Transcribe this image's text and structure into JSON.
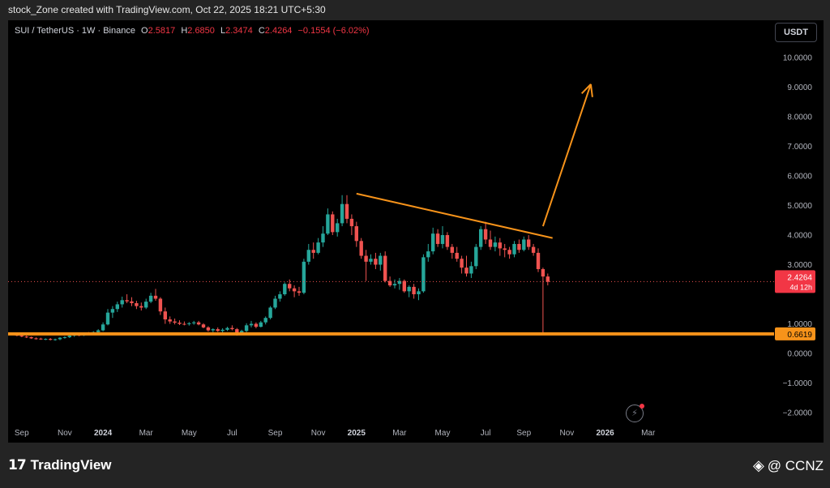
{
  "header": {
    "caption": "stock_Zone created with TradingView.com, Oct 22, 2025 18:21 UTC+5:30"
  },
  "legend": {
    "symbol": "SUI / TetherUS · 1W · Binance",
    "open_label": "O",
    "open": "2.5817",
    "high_label": "H",
    "high": "2.6850",
    "low_label": "L",
    "low": "2.3474",
    "close_label": "C",
    "close": "2.4264",
    "change": "−0.1554 (−6.02%)"
  },
  "currency_button": "USDT",
  "footer": {
    "logo_text": "TradingView",
    "watermark": "@ CCNZ"
  },
  "colors": {
    "up": "#26a69a",
    "down": "#ef5350",
    "drawing": "#f7931a",
    "background": "#000000"
  },
  "chart_data": {
    "type": "candlestick",
    "symbol": "SUI / TetherUS",
    "interval": "1W",
    "exchange": "Binance",
    "ylim": [
      -2.0,
      10.5
    ],
    "y_ticks": [
      "10.0000",
      "9.0000",
      "8.0000",
      "7.0000",
      "6.0000",
      "5.0000",
      "4.0000",
      "3.0000",
      "1.0000",
      "0.0000",
      "−1.0000",
      "−2.0000"
    ],
    "y_tick_values": [
      10,
      9,
      8,
      7,
      6,
      5,
      4,
      3,
      1,
      0,
      -1,
      -2
    ],
    "x_ticks": [
      {
        "label": "Sep",
        "week": 2,
        "bold": false
      },
      {
        "label": "Nov",
        "week": 11,
        "bold": false
      },
      {
        "label": "2024",
        "week": 19,
        "bold": true
      },
      {
        "label": "Mar",
        "week": 28,
        "bold": false
      },
      {
        "label": "May",
        "week": 37,
        "bold": false
      },
      {
        "label": "Jul",
        "week": 46,
        "bold": false
      },
      {
        "label": "Sep",
        "week": 55,
        "bold": false
      },
      {
        "label": "Nov",
        "week": 64,
        "bold": false
      },
      {
        "label": "2025",
        "week": 72,
        "bold": true
      },
      {
        "label": "Mar",
        "week": 81,
        "bold": false
      },
      {
        "label": "May",
        "week": 90,
        "bold": false
      },
      {
        "label": "Jul",
        "week": 99,
        "bold": false
      },
      {
        "label": "Sep",
        "week": 107,
        "bold": false
      },
      {
        "label": "Nov",
        "week": 116,
        "bold": false
      },
      {
        "label": "2026",
        "week": 124,
        "bold": true
      },
      {
        "label": "Mar",
        "week": 133,
        "bold": false
      }
    ],
    "candles": [
      [
        0.65,
        0.68,
        0.62,
        0.64
      ],
      [
        0.64,
        0.66,
        0.58,
        0.6
      ],
      [
        0.6,
        0.63,
        0.55,
        0.57
      ],
      [
        0.57,
        0.6,
        0.52,
        0.55
      ],
      [
        0.55,
        0.57,
        0.49,
        0.51
      ],
      [
        0.51,
        0.54,
        0.47,
        0.5
      ],
      [
        0.5,
        0.53,
        0.46,
        0.48
      ],
      [
        0.48,
        0.51,
        0.45,
        0.49
      ],
      [
        0.49,
        0.52,
        0.44,
        0.46
      ],
      [
        0.46,
        0.5,
        0.43,
        0.48
      ],
      [
        0.48,
        0.55,
        0.45,
        0.53
      ],
      [
        0.53,
        0.58,
        0.5,
        0.55
      ],
      [
        0.55,
        0.62,
        0.52,
        0.6
      ],
      [
        0.6,
        0.66,
        0.56,
        0.63
      ],
      [
        0.63,
        0.68,
        0.58,
        0.61
      ],
      [
        0.61,
        0.7,
        0.59,
        0.67
      ],
      [
        0.67,
        0.72,
        0.62,
        0.65
      ],
      [
        0.65,
        0.75,
        0.62,
        0.72
      ],
      [
        0.72,
        0.82,
        0.68,
        0.78
      ],
      [
        0.78,
        1.05,
        0.75,
        0.98
      ],
      [
        0.98,
        1.5,
        0.95,
        1.38
      ],
      [
        1.38,
        1.6,
        1.2,
        1.5
      ],
      [
        1.5,
        1.75,
        1.4,
        1.66
      ],
      [
        1.66,
        1.92,
        1.55,
        1.8
      ],
      [
        1.8,
        2.0,
        1.7,
        1.76
      ],
      [
        1.76,
        1.9,
        1.6,
        1.7
      ],
      [
        1.7,
        1.78,
        1.5,
        1.6
      ],
      [
        1.6,
        1.72,
        1.45,
        1.55
      ],
      [
        1.55,
        1.85,
        1.5,
        1.75
      ],
      [
        1.75,
        2.05,
        1.7,
        1.95
      ],
      [
        1.95,
        2.18,
        1.78,
        1.85
      ],
      [
        1.85,
        1.9,
        1.3,
        1.42
      ],
      [
        1.42,
        1.55,
        1.0,
        1.15
      ],
      [
        1.15,
        1.25,
        1.0,
        1.08
      ],
      [
        1.08,
        1.18,
        0.98,
        1.04
      ],
      [
        1.04,
        1.12,
        0.96,
        1.0
      ],
      [
        1.0,
        1.08,
        0.95,
        0.99
      ],
      [
        0.99,
        1.06,
        0.94,
        1.02
      ],
      [
        1.02,
        1.1,
        0.97,
        1.05
      ],
      [
        1.05,
        1.1,
        0.95,
        0.98
      ],
      [
        0.98,
        1.02,
        0.85,
        0.88
      ],
      [
        0.88,
        0.92,
        0.74,
        0.78
      ],
      [
        0.78,
        0.85,
        0.72,
        0.82
      ],
      [
        0.82,
        0.88,
        0.73,
        0.76
      ],
      [
        0.76,
        0.85,
        0.7,
        0.8
      ],
      [
        0.8,
        0.9,
        0.76,
        0.86
      ],
      [
        0.86,
        0.95,
        0.78,
        0.82
      ],
      [
        0.82,
        0.86,
        0.6,
        0.66
      ],
      [
        0.66,
        0.8,
        0.62,
        0.76
      ],
      [
        0.76,
        1.02,
        0.72,
        0.95
      ],
      [
        0.95,
        1.1,
        0.88,
        1.0
      ],
      [
        1.0,
        1.05,
        0.85,
        0.9
      ],
      [
        0.9,
        1.1,
        0.88,
        1.05
      ],
      [
        1.05,
        1.25,
        0.98,
        1.2
      ],
      [
        1.2,
        1.6,
        1.15,
        1.55
      ],
      [
        1.55,
        1.95,
        1.5,
        1.85
      ],
      [
        1.85,
        2.1,
        1.75,
        2.0
      ],
      [
        2.0,
        2.4,
        1.95,
        2.35
      ],
      [
        2.35,
        2.5,
        2.1,
        2.2
      ],
      [
        2.2,
        2.3,
        1.9,
        2.1
      ],
      [
        2.1,
        2.25,
        1.95,
        2.05
      ],
      [
        2.05,
        3.2,
        2.0,
        3.1
      ],
      [
        3.1,
        3.7,
        3.0,
        3.5
      ],
      [
        3.5,
        3.75,
        3.2,
        3.4
      ],
      [
        3.4,
        3.9,
        3.35,
        3.75
      ],
      [
        3.75,
        4.3,
        3.6,
        4.05
      ],
      [
        4.05,
        4.9,
        4.0,
        4.7
      ],
      [
        4.7,
        4.8,
        4.0,
        4.1
      ],
      [
        4.1,
        4.55,
        3.95,
        4.4
      ],
      [
        4.4,
        5.35,
        4.3,
        5.05
      ],
      [
        5.05,
        5.35,
        4.4,
        4.55
      ],
      [
        4.55,
        4.7,
        4.0,
        4.3
      ],
      [
        4.3,
        4.45,
        3.6,
        3.8
      ],
      [
        3.8,
        3.9,
        3.2,
        3.3
      ],
      [
        3.3,
        3.5,
        2.45,
        3.1
      ],
      [
        3.1,
        3.35,
        3.0,
        3.2
      ],
      [
        3.2,
        3.4,
        2.85,
        3.0
      ],
      [
        3.0,
        3.4,
        2.8,
        3.3
      ],
      [
        3.3,
        3.45,
        2.4,
        2.45
      ],
      [
        2.45,
        2.6,
        2.25,
        2.3
      ],
      [
        2.3,
        2.5,
        2.2,
        2.35
      ],
      [
        2.35,
        2.55,
        2.15,
        2.45
      ],
      [
        2.45,
        2.5,
        2.05,
        2.1
      ],
      [
        2.1,
        2.3,
        1.9,
        2.25
      ],
      [
        2.25,
        2.35,
        1.85,
        2.0
      ],
      [
        2.0,
        2.2,
        1.8,
        2.1
      ],
      [
        2.1,
        3.35,
        2.05,
        3.25
      ],
      [
        3.25,
        3.7,
        3.1,
        3.45
      ],
      [
        3.45,
        4.25,
        3.35,
        4.05
      ],
      [
        4.05,
        4.2,
        3.6,
        3.7
      ],
      [
        3.7,
        4.3,
        3.55,
        4.0
      ],
      [
        4.0,
        4.1,
        3.5,
        3.6
      ],
      [
        3.6,
        3.7,
        3.2,
        3.4
      ],
      [
        3.4,
        3.6,
        3.1,
        3.2
      ],
      [
        3.2,
        3.3,
        2.7,
        2.9
      ],
      [
        2.9,
        3.3,
        2.6,
        2.7
      ],
      [
        2.7,
        3.1,
        2.55,
        2.95
      ],
      [
        2.95,
        3.7,
        2.85,
        3.6
      ],
      [
        3.6,
        4.3,
        3.5,
        4.2
      ],
      [
        4.2,
        4.45,
        3.7,
        3.85
      ],
      [
        3.85,
        4.15,
        3.5,
        3.6
      ],
      [
        3.6,
        3.95,
        3.45,
        3.75
      ],
      [
        3.75,
        3.9,
        3.3,
        3.55
      ],
      [
        3.55,
        3.7,
        3.25,
        3.5
      ],
      [
        3.5,
        3.6,
        3.2,
        3.35
      ],
      [
        3.35,
        3.8,
        3.25,
        3.7
      ],
      [
        3.7,
        3.85,
        3.4,
        3.5
      ],
      [
        3.5,
        3.95,
        3.45,
        3.85
      ],
      [
        3.85,
        4.0,
        3.5,
        3.6
      ],
      [
        3.6,
        3.7,
        3.3,
        3.4
      ],
      [
        3.4,
        3.55,
        2.75,
        2.85
      ],
      [
        2.85,
        2.9,
        0.7,
        2.6
      ],
      [
        2.6,
        2.7,
        2.3,
        2.42
      ]
    ],
    "annotations": {
      "current_price": {
        "value": 2.4264,
        "label": "2.4264",
        "countdown": "4d 12h"
      },
      "horizontal_line": {
        "value": 0.6619,
        "label": "0.6619"
      },
      "trendline": {
        "start": {
          "week": 72,
          "price": 5.4
        },
        "end": {
          "week": 113,
          "price": 3.9
        }
      },
      "arrow": {
        "start": {
          "week": 111,
          "price": 4.3
        },
        "end": {
          "week": 121,
          "price": 9.1
        }
      }
    }
  }
}
